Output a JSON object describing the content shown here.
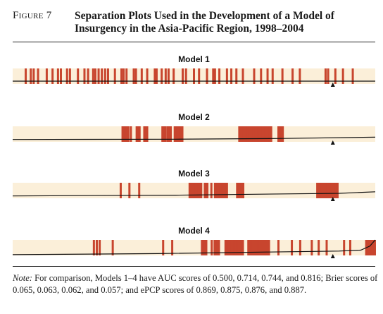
{
  "figure": {
    "label": "Figure 7",
    "title": "Separation Plots Used in the Development of a Model of Insurgency in the Asia-Pacific Region, 1998–2004"
  },
  "note": {
    "label": "Note:",
    "text": "For comparison, Models 1–4 have AUC scores of 0.500, 0.714, 0.744, and 0.816; Brier scores of 0.065, 0.063, 0.062, and 0.057; and ePCP scores of 0.869, 0.875, 0.876, and 0.887."
  },
  "colors": {
    "background_band": "#fbefd9",
    "event_line": "#c8452e",
    "prediction_line": "#111111",
    "marker": "#111111"
  },
  "chart_data": {
    "type": "separation-plot",
    "x_range": [
      0,
      1
    ],
    "y_range": [
      0,
      1
    ],
    "panels": [
      {
        "title": "Model 1",
        "events": [
          0.036,
          0.05,
          0.058,
          0.07,
          0.094,
          0.11,
          0.125,
          0.133,
          0.15,
          0.158,
          0.18,
          0.198,
          0.208,
          0.222,
          0.228,
          0.237,
          0.246,
          0.255,
          0.263,
          0.282,
          0.3,
          0.306,
          0.314,
          0.334,
          0.34,
          0.356,
          0.371,
          0.392,
          0.397,
          0.411,
          0.422,
          0.43,
          0.444,
          0.469,
          0.478,
          0.5,
          0.514,
          0.536,
          0.553,
          0.558,
          0.57,
          0.591,
          0.603,
          0.617,
          0.635,
          0.666,
          0.685,
          0.703,
          0.717,
          0.744,
          0.772,
          0.792,
          0.863,
          0.87,
          0.89,
          0.911,
          0.938
        ],
        "curve": [
          [
            0,
            0.18
          ],
          [
            1,
            0.18
          ]
        ],
        "expected_marker": 0.883
      },
      {
        "title": "Model 2",
        "events": [
          0.303,
          0.307,
          0.311,
          0.315,
          0.319,
          0.326,
          0.342,
          0.346,
          0.35,
          0.363,
          0.367,
          0.371,
          0.413,
          0.417,
          0.421,
          0.427,
          0.431,
          0.436,
          0.447,
          0.451,
          0.455,
          0.459,
          0.463,
          0.468,
          0.625,
          0.629,
          0.633,
          0.637,
          0.641,
          0.645,
          0.649,
          0.653,
          0.657,
          0.661,
          0.665,
          0.669,
          0.673,
          0.677,
          0.681,
          0.685,
          0.689,
          0.693,
          0.697,
          0.701,
          0.705,
          0.709,
          0.713,
          0.733,
          0.737,
          0.741,
          0.745
        ],
        "curve": [
          [
            0,
            0.15
          ],
          [
            0.45,
            0.17
          ],
          [
            0.75,
            0.22
          ],
          [
            1,
            0.3
          ]
        ],
        "expected_marker": 0.883
      },
      {
        "title": "Model 3",
        "events": [
          0.298,
          0.322,
          0.349,
          0.488,
          0.492,
          0.496,
          0.5,
          0.504,
          0.508,
          0.512,
          0.516,
          0.52,
          0.53,
          0.534,
          0.537,
          0.548,
          0.558,
          0.562,
          0.566,
          0.571,
          0.575,
          0.579,
          0.583,
          0.587,
          0.591,
          0.619,
          0.624,
          0.628,
          0.632,
          0.636,
          0.84,
          0.844,
          0.848,
          0.852,
          0.856,
          0.86,
          0.864,
          0.868,
          0.872,
          0.876,
          0.88,
          0.884,
          0.888,
          0.892,
          0.896
        ],
        "curve": [
          [
            0,
            0.15
          ],
          [
            0.45,
            0.2
          ],
          [
            0.75,
            0.28
          ],
          [
            0.9,
            0.32
          ],
          [
            1,
            0.42
          ]
        ],
        "expected_marker": 0.883
      },
      {
        "title": "Model 4",
        "events": [
          0.224,
          0.232,
          0.24,
          0.276,
          0.415,
          0.44,
          0.522,
          0.526,
          0.53,
          0.534,
          0.549,
          0.557,
          0.561,
          0.565,
          0.569,
          0.587,
          0.592,
          0.596,
          0.6,
          0.604,
          0.607,
          0.611,
          0.615,
          0.619,
          0.623,
          0.627,
          0.631,
          0.635,
          0.65,
          0.654,
          0.658,
          0.662,
          0.666,
          0.67,
          0.674,
          0.678,
          0.682,
          0.686,
          0.69,
          0.694,
          0.699,
          0.703,
          0.707,
          0.733,
          0.77,
          0.793,
          0.825,
          0.844,
          0.866,
          0.914,
          0.931,
          0.975,
          0.979,
          0.983,
          0.987,
          0.991,
          0.995,
          0.999
        ],
        "curve": [
          [
            0,
            0.05
          ],
          [
            0.4,
            0.12
          ],
          [
            0.7,
            0.22
          ],
          [
            0.9,
            0.28
          ],
          [
            0.96,
            0.34
          ],
          [
            0.985,
            0.6
          ],
          [
            1,
            1.0
          ]
        ],
        "expected_marker": 0.883
      }
    ]
  }
}
